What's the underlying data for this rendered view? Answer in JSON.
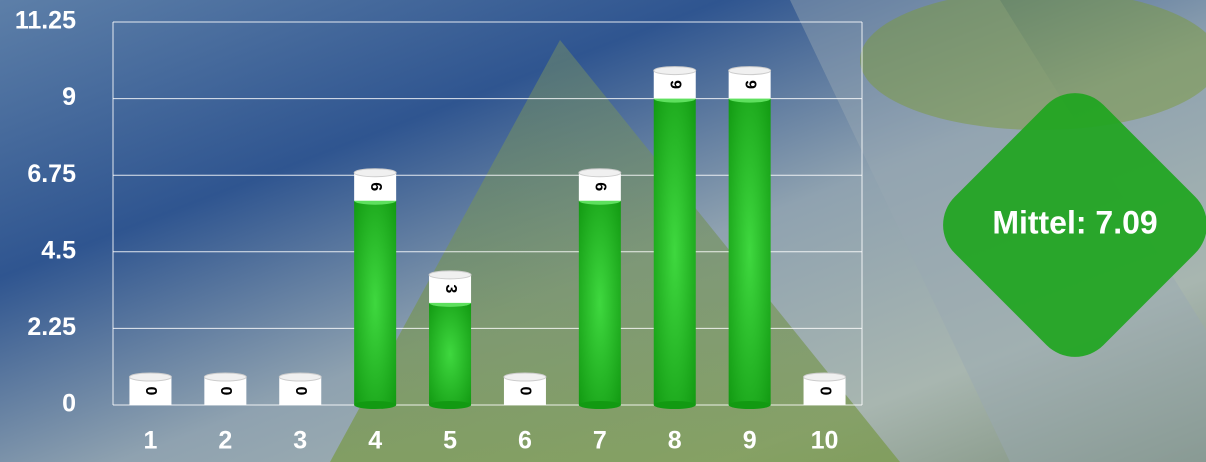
{
  "chart_data": {
    "type": "bar",
    "categories": [
      "1",
      "2",
      "3",
      "4",
      "5",
      "6",
      "7",
      "8",
      "9",
      "10"
    ],
    "values": [
      0,
      0,
      0,
      6,
      3,
      0,
      6,
      9,
      9,
      0
    ],
    "color": "#1fb01f",
    "ylim": [
      0,
      11.25
    ],
    "yticks": [
      0,
      2.25,
      4.5,
      6.75,
      9,
      11.25
    ],
    "grid": true,
    "annotation": "Mittel: 7.09"
  }
}
